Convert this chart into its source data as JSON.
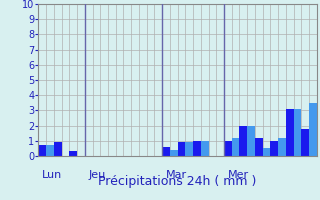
{
  "title": "",
  "xlabel": "Précipitations 24h ( mm )",
  "ylabel": "",
  "ylim": [
    0,
    10
  ],
  "yticks": [
    0,
    1,
    2,
    3,
    4,
    5,
    6,
    7,
    8,
    9,
    10
  ],
  "background_color": "#d8f0f0",
  "bar_color_dark": "#1a1aee",
  "bar_color_light": "#4499ee",
  "grid_color": "#b0b0b0",
  "num_bars": 36,
  "values": [
    0.7,
    0.7,
    0.9,
    0.0,
    0.3,
    0.0,
    0.0,
    0.0,
    0.0,
    0.0,
    0.0,
    0.0,
    0.0,
    0.0,
    0.0,
    0.0,
    0.6,
    0.4,
    0.9,
    0.9,
    1.0,
    1.0,
    0.0,
    0.0,
    1.0,
    1.2,
    2.0,
    2.0,
    1.2,
    0.5,
    1.0,
    1.2,
    3.1,
    3.1,
    1.8,
    3.5
  ],
  "day_labels": [
    "Lun",
    "Jeu",
    "Mar",
    "Mer"
  ],
  "day_positions": [
    0.5,
    6.5,
    16.5,
    24.5
  ],
  "vline_positions": [
    6,
    16,
    24
  ],
  "vline_color": "#6666aa",
  "xlabel_color": "#2222bb",
  "xlabel_fontsize": 9,
  "ytick_fontsize": 7,
  "day_label_fontsize": 8,
  "day_label_color": "#2222bb"
}
